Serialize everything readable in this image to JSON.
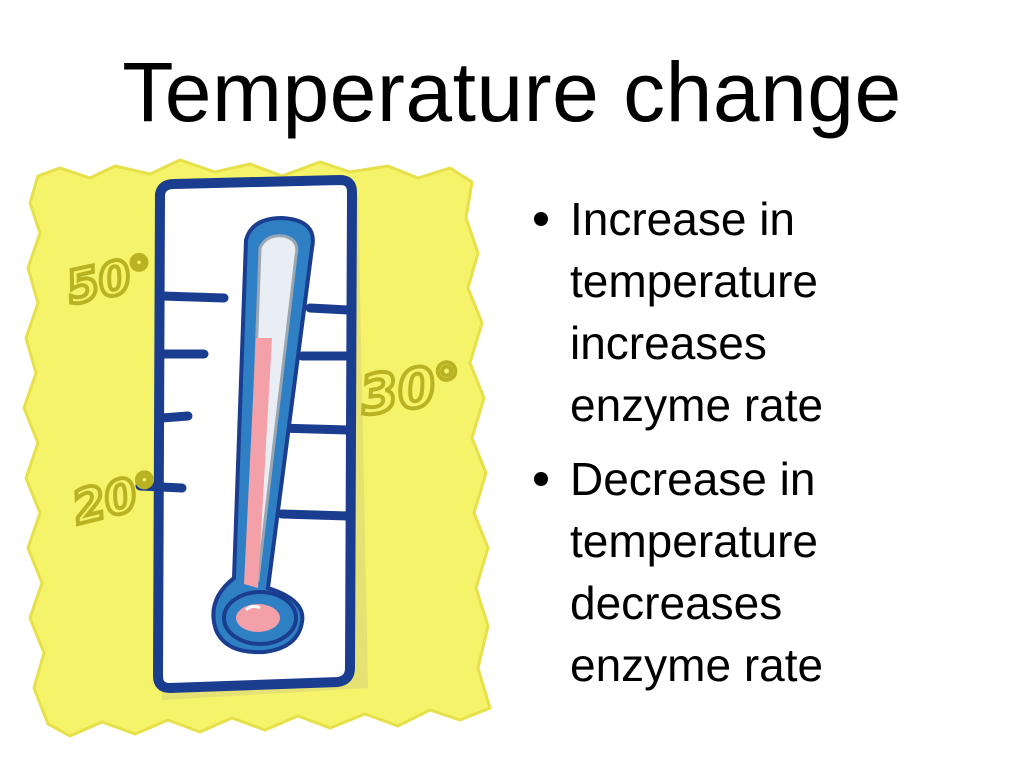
{
  "slide": {
    "title": "Temperature change",
    "illustration": {
      "icon": "thermometer-icon",
      "labels": {
        "top_left": "50°",
        "right": "30°",
        "bottom_left": "20°"
      },
      "colors": {
        "paper": "#f4f36a",
        "paper_edge": "#e6e04a",
        "frame": "#1b3d8f",
        "tube": "#2f7fc4",
        "mercury": "#f4a0a8",
        "label_ink": "#b9b323"
      }
    },
    "bullets": [
      {
        "lines": [
          "Increase in",
          "temperature",
          "increases",
          "enzyme rate"
        ]
      },
      {
        "lines": [
          "Decrease in",
          "temperature",
          "decreases",
          "enzyme rate"
        ]
      }
    ]
  }
}
